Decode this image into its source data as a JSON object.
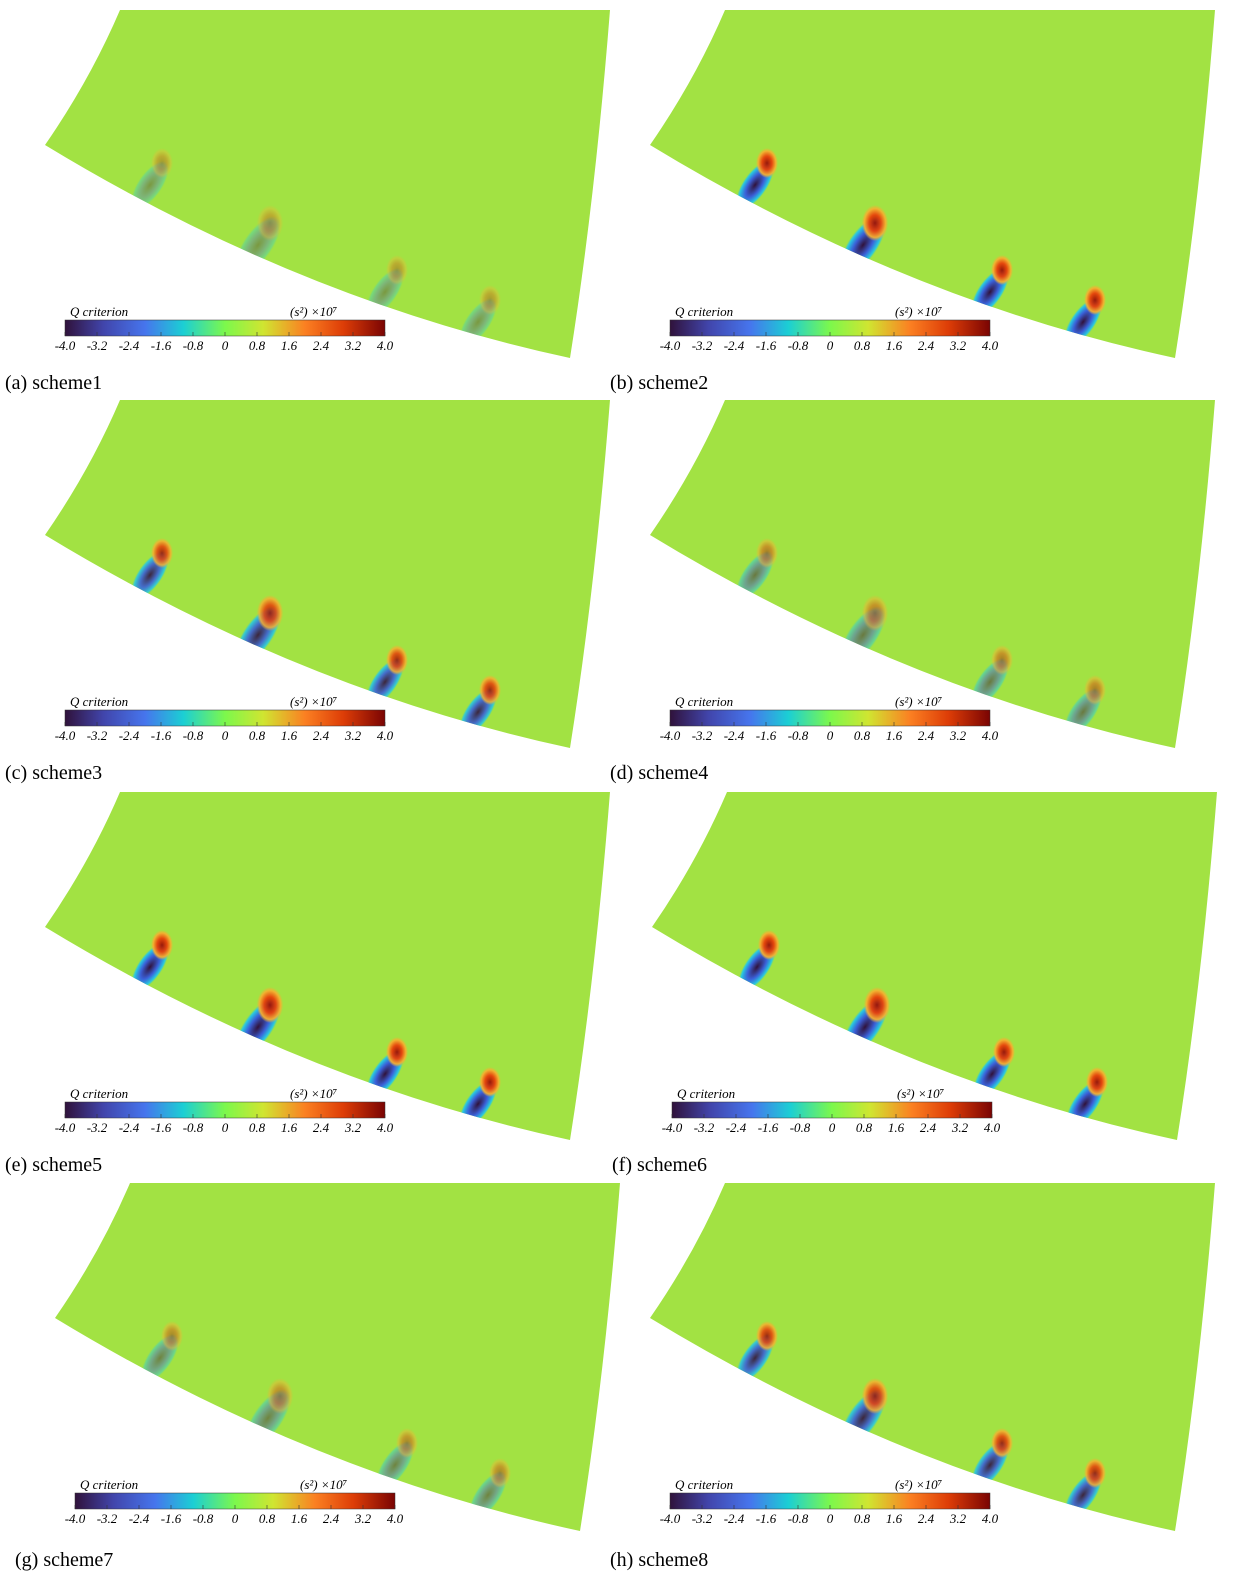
{
  "colorbar": {
    "title": "Q criterion",
    "unit": "(s²) ×10⁷",
    "lim": [
      -4,
      4
    ],
    "ticks": [
      {
        "value": -4,
        "label": "-4.0"
      },
      -3.2,
      -2.4,
      -1.6,
      -0.8,
      0,
      0.8,
      1.6,
      2.4,
      3.2,
      {
        "value": 4,
        "label": "4.0"
      }
    ]
  },
  "panels": [
    {
      "caption": "(a) scheme1"
    },
    {
      "caption": "(b) scheme2"
    },
    {
      "caption": "(c) scheme3"
    },
    {
      "caption": "(d) scheme4"
    },
    {
      "caption": "(e) scheme5"
    },
    {
      "caption": "(f) scheme6"
    },
    {
      "caption": "(g) scheme7"
    },
    {
      "caption": "(h) scheme8"
    }
  ]
}
